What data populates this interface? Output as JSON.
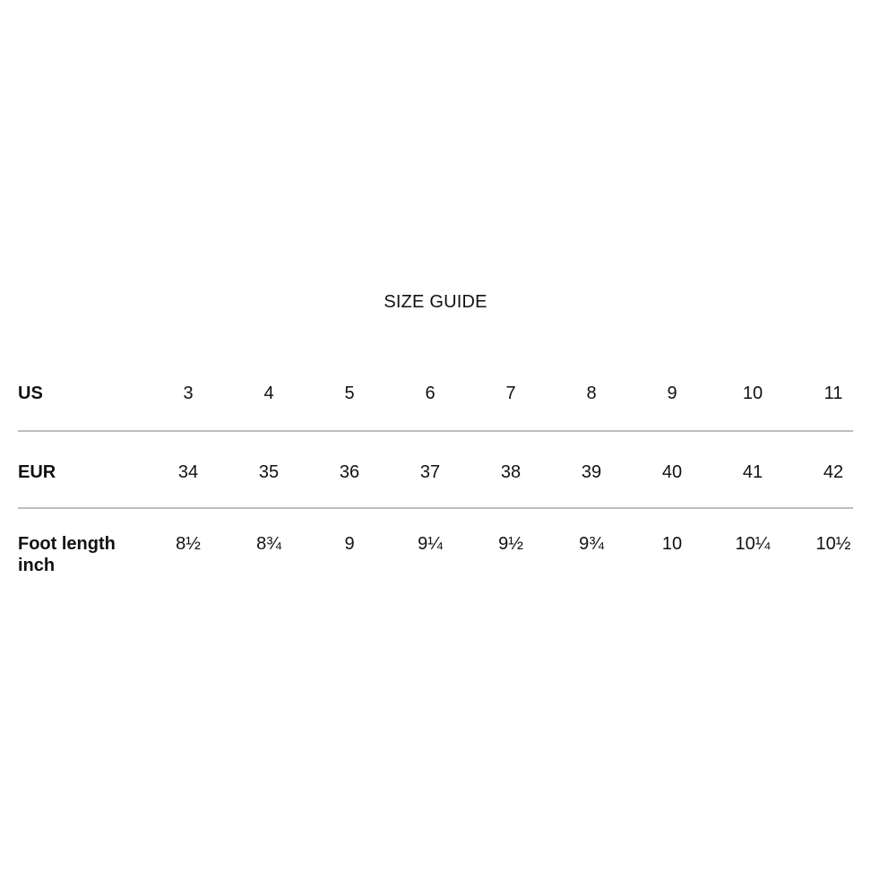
{
  "page": {
    "background_color": "#ffffff",
    "text_color": "#111111",
    "divider_color": "#bdbdbd"
  },
  "title": "SIZE GUIDE",
  "size_table": {
    "rows": [
      {
        "label": "US",
        "values": [
          "3",
          "4",
          "5",
          "6",
          "7",
          "8",
          "9",
          "10",
          "11"
        ]
      },
      {
        "label": "EUR",
        "values": [
          "34",
          "35",
          "36",
          "37",
          "38",
          "39",
          "40",
          "41",
          "42"
        ]
      },
      {
        "label": "Foot length inch",
        "values": [
          "8½",
          "8¾",
          "9",
          "9¼",
          "9½",
          "9¾",
          "10",
          "10¼",
          "10½"
        ]
      }
    ]
  },
  "chart_data": {
    "type": "table",
    "title": "SIZE GUIDE",
    "row_headers": [
      "US",
      "EUR",
      "Foot length inch"
    ],
    "columns_count": 9,
    "rows": [
      [
        "3",
        "4",
        "5",
        "6",
        "7",
        "8",
        "9",
        "10",
        "11"
      ],
      [
        "34",
        "35",
        "36",
        "37",
        "38",
        "39",
        "40",
        "41",
        "42"
      ],
      [
        "8½",
        "8¾",
        "9",
        "9¼",
        "9½",
        "9¾",
        "10",
        "10¼",
        "10½"
      ]
    ],
    "layout_hints": {
      "grid": "horizontal dividers only, below US row and below EUR row",
      "label_column_alignment": "left, bold",
      "value_alignment": "center",
      "background": "white"
    }
  }
}
